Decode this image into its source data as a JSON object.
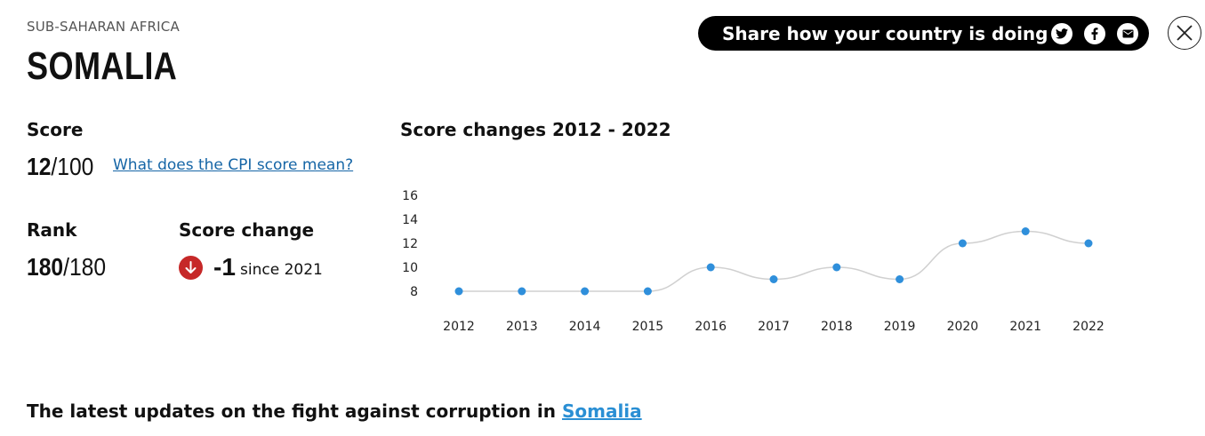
{
  "header": {
    "region": "SUB-SAHARAN AFRICA",
    "country": "SOMALIA"
  },
  "share": {
    "label": "Share how your country is doing",
    "icons": [
      "twitter-icon",
      "facebook-icon",
      "email-icon"
    ]
  },
  "close": {
    "icon": "close-icon"
  },
  "score": {
    "label": "Score",
    "value": "12",
    "out_of": "/100",
    "link_text": "What does the CPI score mean?"
  },
  "rank": {
    "label": "Rank",
    "value": "180",
    "out_of": "/180"
  },
  "score_change": {
    "label": "Score change",
    "value": "-1",
    "since": "since 2021",
    "icon": "arrow-down-icon"
  },
  "chart_title": "Score changes 2012 - 2022",
  "chart_data": {
    "type": "line",
    "title": "Score changes 2012 - 2022",
    "categories": [
      "2012",
      "2013",
      "2014",
      "2015",
      "2016",
      "2017",
      "2018",
      "2019",
      "2020",
      "2021",
      "2022"
    ],
    "values": [
      8,
      8,
      8,
      8,
      10,
      9,
      10,
      9,
      12,
      13,
      12
    ],
    "yticks": [
      8,
      10,
      12,
      14,
      16
    ],
    "ylim": [
      8,
      16
    ],
    "xlabel": "",
    "ylabel": "",
    "grid": false
  },
  "latest": {
    "text": "The latest updates on the fight against corruption in ",
    "link": "Somalia"
  },
  "colors": {
    "point": "#2f8fdb",
    "line": "#d0d0d0",
    "down": "#c62828",
    "link": "#1565a6"
  }
}
